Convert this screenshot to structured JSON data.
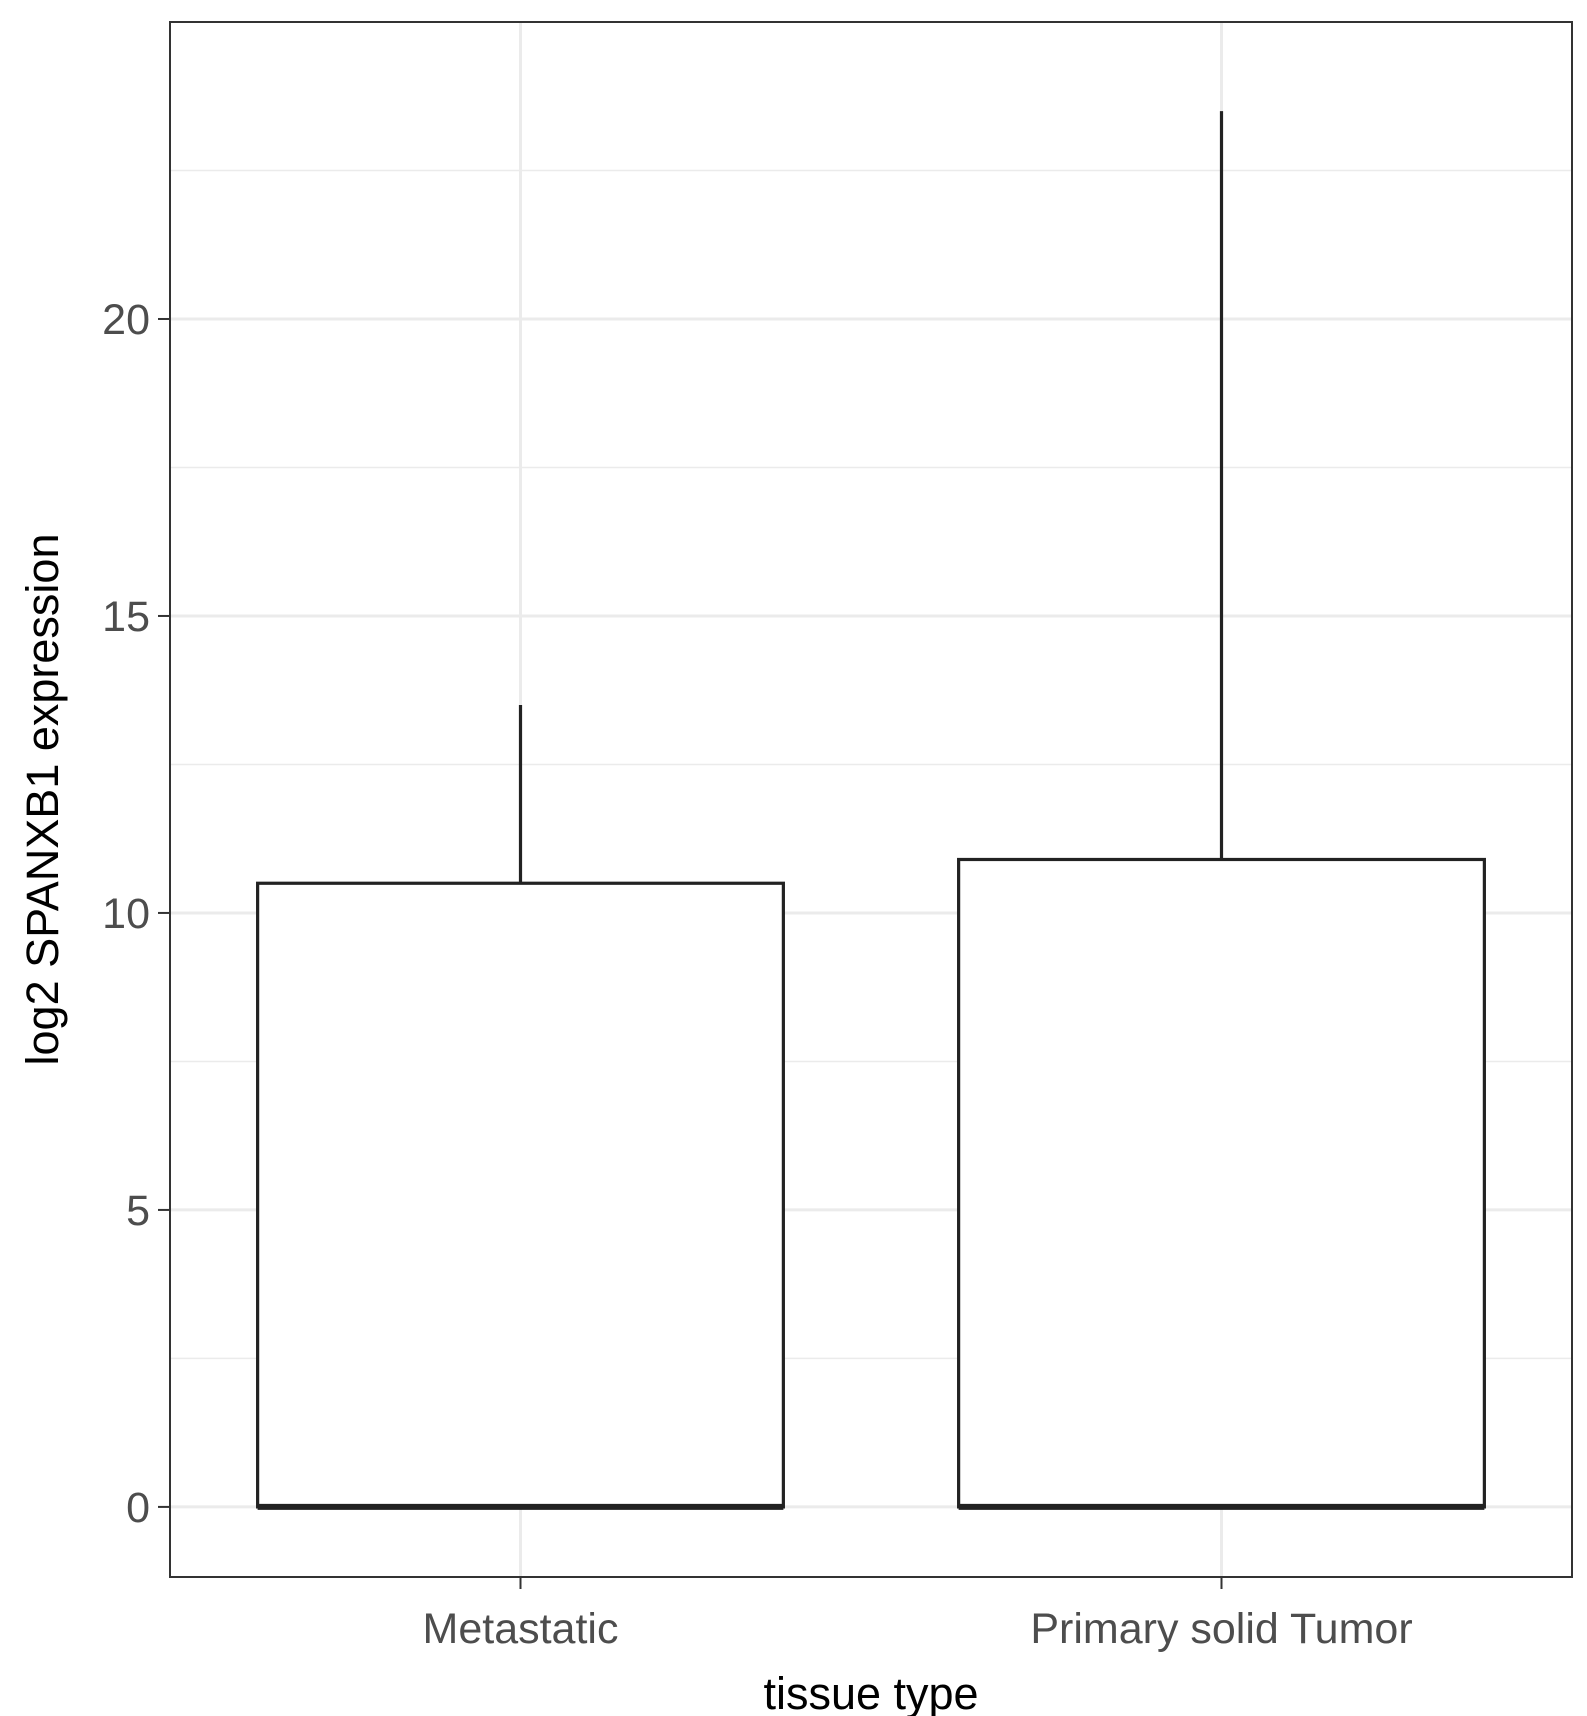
{
  "chart_data": {
    "type": "box",
    "xlabel": "tissue type",
    "ylabel": "log2 SPANXB1 expression",
    "categories": [
      "Metastatic",
      "Primary solid Tumor"
    ],
    "boxes": [
      {
        "category": "Metastatic",
        "whisker_low": 0,
        "q1": 0,
        "median": 0,
        "q3": 10.5,
        "whisker_high": 13.5
      },
      {
        "category": "Primary solid Tumor",
        "whisker_low": 0,
        "q1": 0,
        "median": 0,
        "q3": 10.9,
        "whisker_high": 23.5
      }
    ],
    "ylim": [
      -1.18,
      25.0
    ],
    "yticks": [
      0,
      5,
      10,
      15,
      20
    ],
    "ytick_labels": [
      "0",
      "5",
      "10",
      "15",
      "20"
    ],
    "y_minor_ticks": [
      2.5,
      7.5,
      12.5,
      17.5,
      22.5
    ],
    "grid": true,
    "legend": "none",
    "colors": {
      "box_fill": "#ffffff",
      "box_stroke": "#222222",
      "grid": "#ebebeb"
    }
  }
}
